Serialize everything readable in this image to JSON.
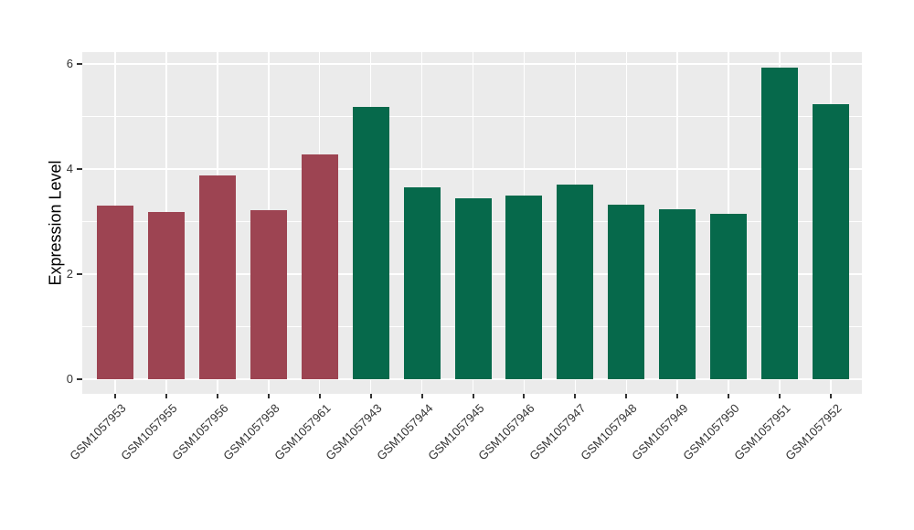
{
  "chart_data": {
    "type": "bar",
    "title": "",
    "xlabel": "",
    "ylabel": "Expression Level",
    "ylim": [
      0,
      6.3
    ],
    "yticks": [
      0,
      2,
      4,
      6
    ],
    "yticks_minor": [
      1,
      3,
      5
    ],
    "legend_position": "none",
    "grid": {
      "major": true,
      "minor": true
    },
    "categories": [
      "GSM1057953",
      "GSM1057955",
      "GSM1057956",
      "GSM1057958",
      "GSM1057961",
      "GSM1057943",
      "GSM1057944",
      "GSM1057945",
      "GSM1057946",
      "GSM1057947",
      "GSM1057948",
      "GSM1057949",
      "GSM1057950",
      "GSM1057951",
      "GSM1057952"
    ],
    "values": [
      3.3,
      3.19,
      3.87,
      3.22,
      4.28,
      5.19,
      3.65,
      3.44,
      3.5,
      3.71,
      3.32,
      3.24,
      3.14,
      5.93,
      5.23
    ],
    "bar_colors": [
      "#9D4452",
      "#9D4452",
      "#9D4452",
      "#9D4452",
      "#9D4452",
      "#06694B",
      "#06694B",
      "#06694B",
      "#06694B",
      "#06694B",
      "#06694B",
      "#06694B",
      "#06694B",
      "#06694B",
      "#06694B"
    ]
  },
  "colors": {
    "bar_group_red": "#9D4452",
    "bar_group_green": "#06694B",
    "panel_background": "#EBEBEB",
    "gridline": "#FFFFFF",
    "tick_label_text": "#333333",
    "axis_title_text": "#000000"
  }
}
